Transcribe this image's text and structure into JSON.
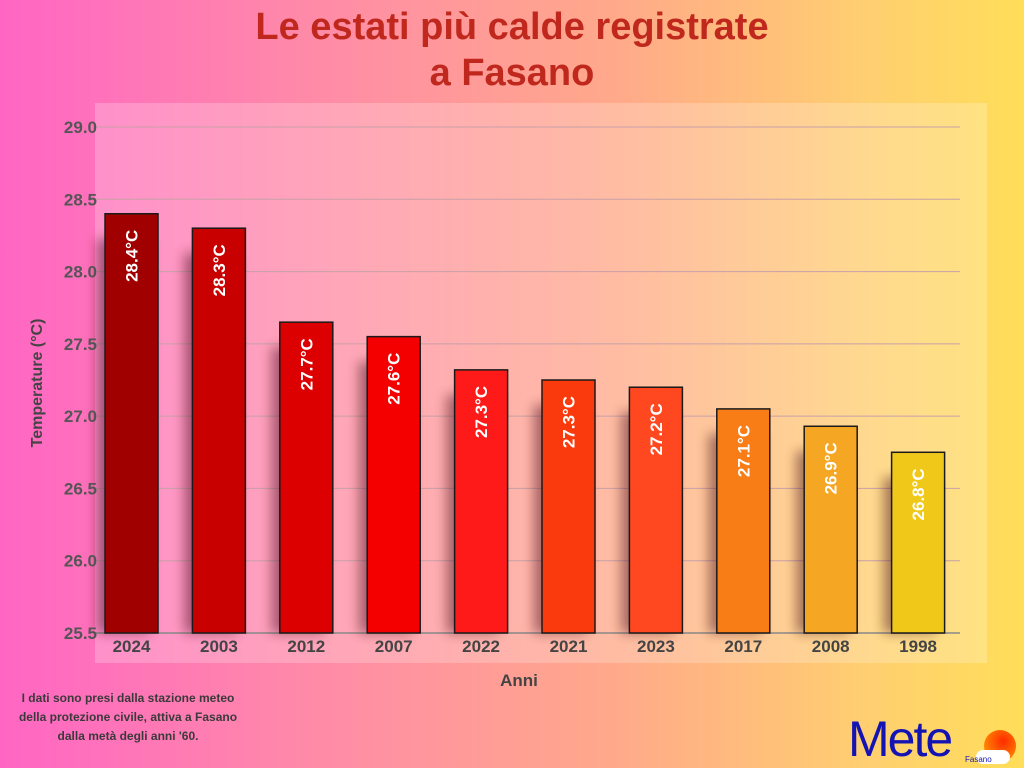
{
  "title_line1": "Le estati più calde registrate",
  "title_line2": "a Fasano",
  "note": [
    "I dati sono presi dalla stazione meteo",
    "della protezione civile, attiva a Fasano",
    "dalla metà degli anni '60."
  ],
  "logo": {
    "word": "Mete",
    "sub": "Fasano"
  },
  "chart_data": {
    "type": "bar",
    "title": "Le estati più calde registrate a Fasano",
    "xlabel": "Anni",
    "ylabel": "Temperature (°C)",
    "ylim": [
      25.5,
      29.0
    ],
    "yticks": [
      "25.5",
      "26.0",
      "26.5",
      "27.0",
      "27.5",
      "28.0",
      "28.5",
      "29.0"
    ],
    "grid": true,
    "categories": [
      "2024",
      "2003",
      "2012",
      "2007",
      "2022",
      "2021",
      "2023",
      "2017",
      "2008",
      "1998"
    ],
    "values": [
      28.4,
      28.3,
      27.65,
      27.55,
      27.32,
      27.25,
      27.2,
      27.05,
      26.93,
      26.75
    ],
    "labels": [
      "28.4°C",
      "28.3°C",
      "27.7°C",
      "27.6°C",
      "27.3°C",
      "27.3°C",
      "27.2°C",
      "27.1°C",
      "26.9°C",
      "26.8°C"
    ],
    "colors": [
      "#a00000",
      "#c80000",
      "#dc0000",
      "#f50000",
      "#ff1a1a",
      "#fa3a0c",
      "#ff4820",
      "#f97d16",
      "#f5a623",
      "#f0c81a"
    ]
  }
}
